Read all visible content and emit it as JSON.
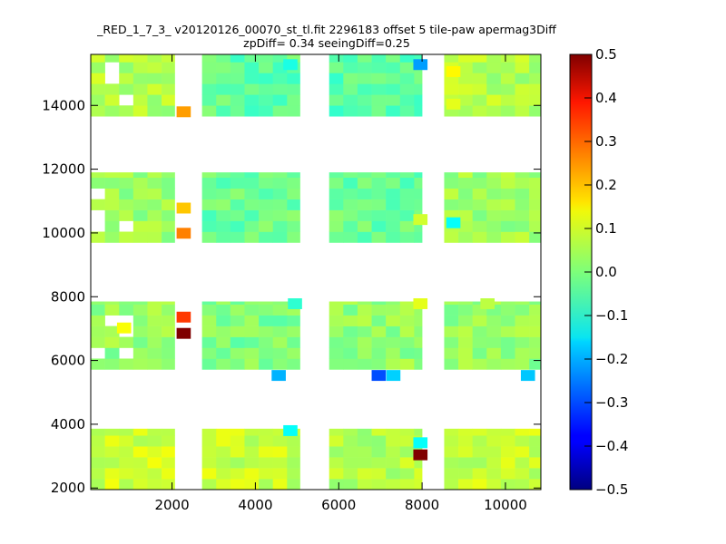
{
  "title_line1": "_RED_1_7_3_ v20120126_00070_st_tl.fit 2296183 offset 5 tile-paw apermag3Diff",
  "title_line2": "zpDiff= 0.34 seeingDiff=0.25",
  "chart_data": {
    "type": "heatmap",
    "xlim": [
      50,
      10850
    ],
    "ylim": [
      1950,
      15600
    ],
    "x_ticks": [
      2000,
      4000,
      6000,
      8000,
      10000
    ],
    "x_tick_labels": [
      "2000",
      "4000",
      "6000",
      "8000",
      "10000"
    ],
    "y_ticks": [
      2000,
      4000,
      6000,
      8000,
      10000,
      12000,
      14000
    ],
    "y_tick_labels": [
      "2000",
      "4000",
      "6000",
      "8000",
      "10000",
      "12000",
      "14000"
    ],
    "colorbar": {
      "colormap": "jet",
      "range": [
        -0.5,
        0.5
      ],
      "ticks": [
        0.5,
        0.4,
        0.3,
        0.2,
        0.1,
        0.0,
        -0.1,
        -0.2,
        -0.3,
        -0.4,
        -0.5
      ],
      "tick_labels": [
        "0.5",
        "0.4",
        "0.3",
        "0.2",
        "0.1",
        "0.0",
        "−0.1",
        "−0.2",
        "−0.3",
        "−0.4",
        "−0.5"
      ]
    },
    "grid": false,
    "cell_size_data_units": 340,
    "x_cell_edges": [
      50,
      2720,
      5770,
      8530,
      10850
    ],
    "detector_blocks": {
      "column_x_ranges": [
        [
          50,
          2065
        ],
        [
          2720,
          5070
        ],
        [
          5770,
          8000
        ],
        [
          8530,
          10850
        ]
      ],
      "row_y_ranges": [
        [
          1950,
          3860
        ],
        [
          5720,
          7850
        ],
        [
          9700,
          11900
        ],
        [
          13660,
          15600
        ]
      ],
      "base_values": [
        [
          0.08,
          0.07,
          0.05,
          0.07
        ],
        [
          0.02,
          0.0,
          0.02,
          0.02
        ],
        [
          0.03,
          -0.02,
          -0.02,
          0.03
        ],
        [
          0.05,
          -0.03,
          -0.04,
          0.05
        ]
      ]
    },
    "outlier_cells": [
      {
        "x": 2280,
        "y": 13800,
        "value": 0.22
      },
      {
        "x": 2280,
        "y": 10780,
        "value": 0.18
      },
      {
        "x": 2280,
        "y": 9990,
        "value": 0.25
      },
      {
        "x": 2280,
        "y": 7360,
        "value": 0.32
      },
      {
        "x": 2280,
        "y": 6850,
        "value": 0.5
      },
      {
        "x": 4560,
        "y": 5530,
        "value": -0.2
      },
      {
        "x": 6960,
        "y": 5530,
        "value": -0.3
      },
      {
        "x": 7310,
        "y": 5530,
        "value": -0.17
      },
      {
        "x": 10540,
        "y": 5530,
        "value": -0.18
      },
      {
        "x": 7960,
        "y": 15280,
        "value": -0.22
      },
      {
        "x": 7960,
        "y": 3420,
        "value": -0.12
      },
      {
        "x": 7960,
        "y": 3040,
        "value": 0.5
      },
      {
        "x": 8750,
        "y": 15060,
        "value": 0.13
      },
      {
        "x": 8750,
        "y": 14040,
        "value": 0.1
      },
      {
        "x": 8750,
        "y": 10320,
        "value": -0.12
      },
      {
        "x": 4840,
        "y": 3800,
        "value": -0.12
      },
      {
        "x": 4840,
        "y": 15280,
        "value": -0.1
      },
      {
        "x": 850,
        "y": 7020,
        "value": 0.12
      },
      {
        "x": 7960,
        "y": 7780,
        "value": 0.1
      },
      {
        "x": 7960,
        "y": 10420,
        "value": 0.08
      },
      {
        "x": 4950,
        "y": 7780,
        "value": -0.08
      },
      {
        "x": 9570,
        "y": 7780,
        "value": 0.06
      }
    ]
  }
}
